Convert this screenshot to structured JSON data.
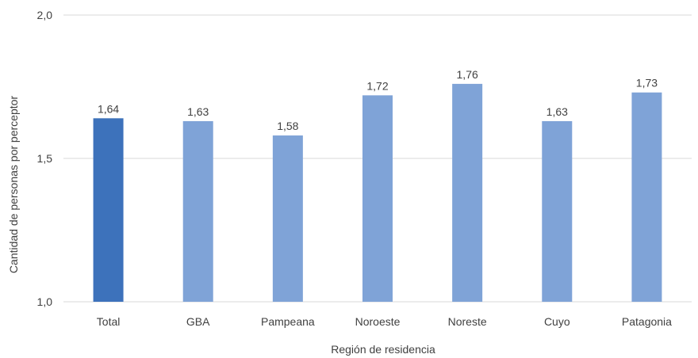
{
  "chart_data": {
    "type": "bar",
    "categories": [
      "Total",
      "GBA",
      "Pampeana",
      "Noroeste",
      "Noreste",
      "Cuyo",
      "Patagonia"
    ],
    "values": [
      1.64,
      1.63,
      1.58,
      1.72,
      1.76,
      1.63,
      1.73
    ],
    "value_labels": [
      "1,64",
      "1,63",
      "1,58",
      "1,72",
      "1,76",
      "1,63",
      "1,73"
    ],
    "title": "",
    "xlabel": "Región de residencia",
    "ylabel": "Cantidad de personas por perceptor",
    "ylim": [
      1.0,
      2.0
    ],
    "yticks": [
      1.0,
      1.5,
      2.0
    ],
    "ytick_labels": [
      "1,0",
      "1,5",
      "2,0"
    ],
    "grid": true,
    "legend": "none",
    "colors": {
      "highlight": "#3d72bb",
      "bar": "#7fa3d7",
      "text": "#404040",
      "grid": "#d9d9d9"
    }
  }
}
